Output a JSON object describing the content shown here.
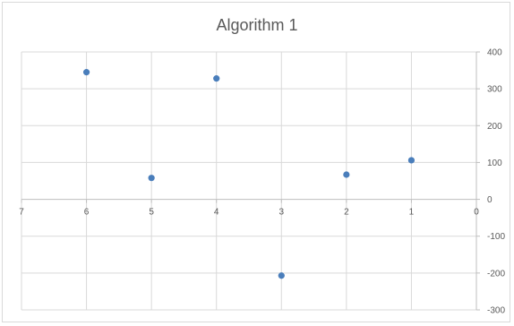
{
  "chart_data": {
    "type": "scatter",
    "title": "Algorithm 1",
    "xlabel": "",
    "ylabel": "",
    "x_reversed": true,
    "xlim": [
      0,
      7
    ],
    "ylim": [
      -300,
      400
    ],
    "x_ticks": [
      7,
      6,
      5,
      4,
      3,
      2,
      1,
      0
    ],
    "y_ticks": [
      400,
      300,
      200,
      100,
      0,
      -100,
      -200,
      -300
    ],
    "grid": true,
    "legend": "none",
    "series": [
      {
        "color": "#4a7ebb",
        "points": [
          {
            "x": 6,
            "y": 345
          },
          {
            "x": 5,
            "y": 58
          },
          {
            "x": 4,
            "y": 328
          },
          {
            "x": 3,
            "y": -207
          },
          {
            "x": 2,
            "y": 67
          },
          {
            "x": 1,
            "y": 106
          }
        ]
      }
    ]
  }
}
